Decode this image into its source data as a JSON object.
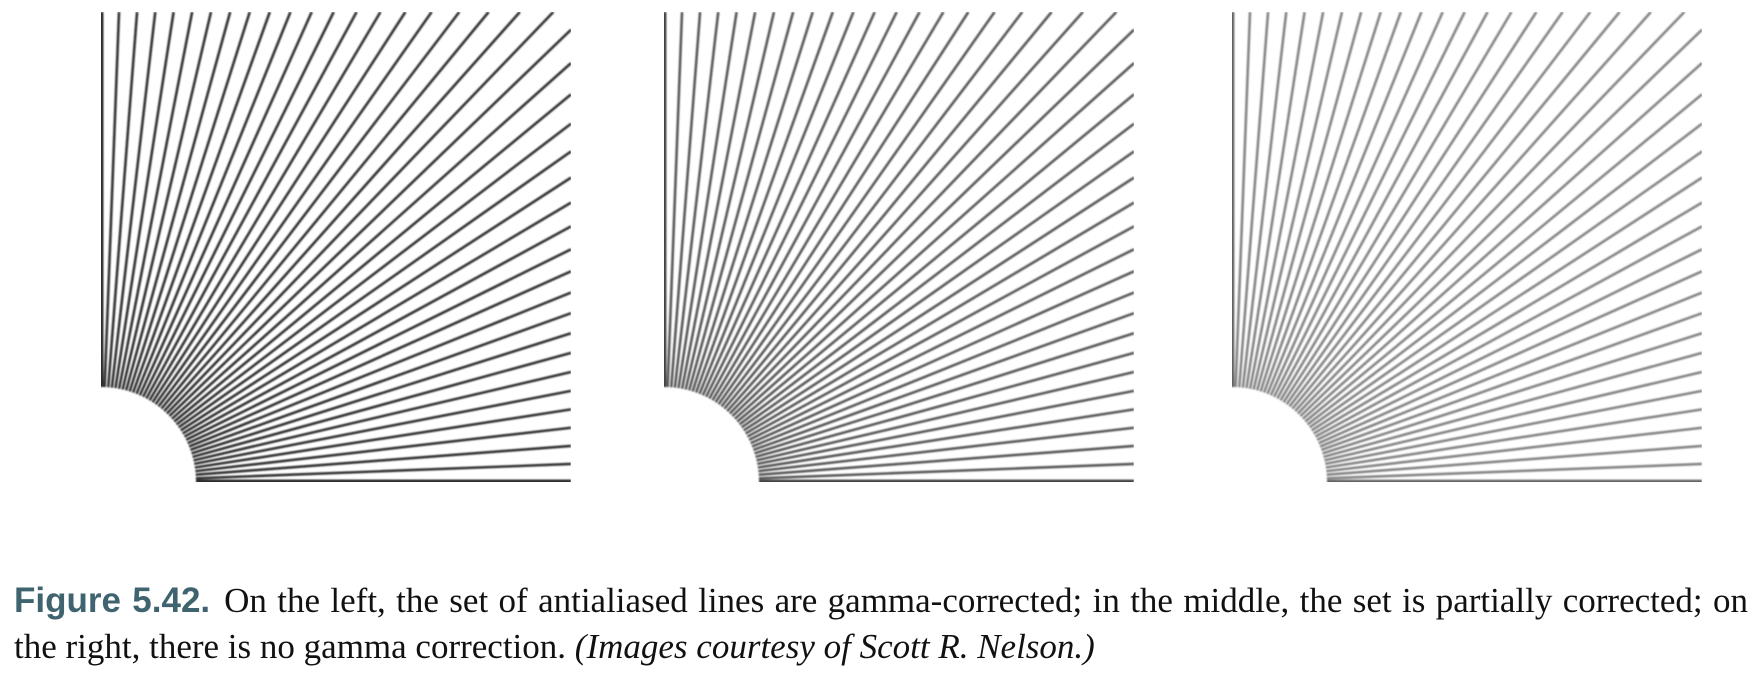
{
  "figure": {
    "label": "Figure 5.42.",
    "caption": "On the left, the set of antialiased lines are gamma-corrected; in the middle, the set is partially corrected; on the right, there is no gamma correction.",
    "credit": "(Images courtesy of Scott R. Nelson.)"
  },
  "panels": [
    {
      "name": "gamma-corrected",
      "stroke_color": "#262626",
      "stroke_opacity": 0.95
    },
    {
      "name": "partially-corrected",
      "stroke_color": "#303030",
      "stroke_opacity": 0.8
    },
    {
      "name": "uncorrected",
      "stroke_color": "#3a3a3a",
      "stroke_opacity": 0.62
    }
  ]
}
